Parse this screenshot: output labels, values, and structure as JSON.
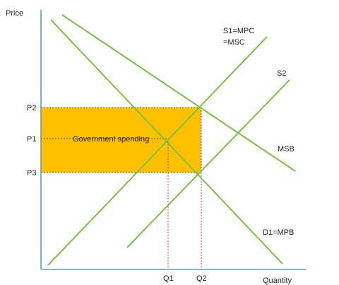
{
  "axes": {
    "y_label": "Price",
    "x_label": "Quantity"
  },
  "price_levels": {
    "p2": "P2",
    "p1": "P1",
    "p3": "P3"
  },
  "quantity_levels": {
    "q1": "Q1",
    "q2": "Q2"
  },
  "curves": {
    "s1_line1": "S1=MPC",
    "s1_line2": "=MSC",
    "s2": "S2",
    "msb": "MSB",
    "d1": "D1=MPB"
  },
  "subsidy_area": {
    "label": "Government spending"
  },
  "colors": {
    "axis": "#5b9bd5",
    "curves": "#7ac143",
    "subsidy_fill": "#ffc000",
    "q_dash": "#e03030"
  }
}
